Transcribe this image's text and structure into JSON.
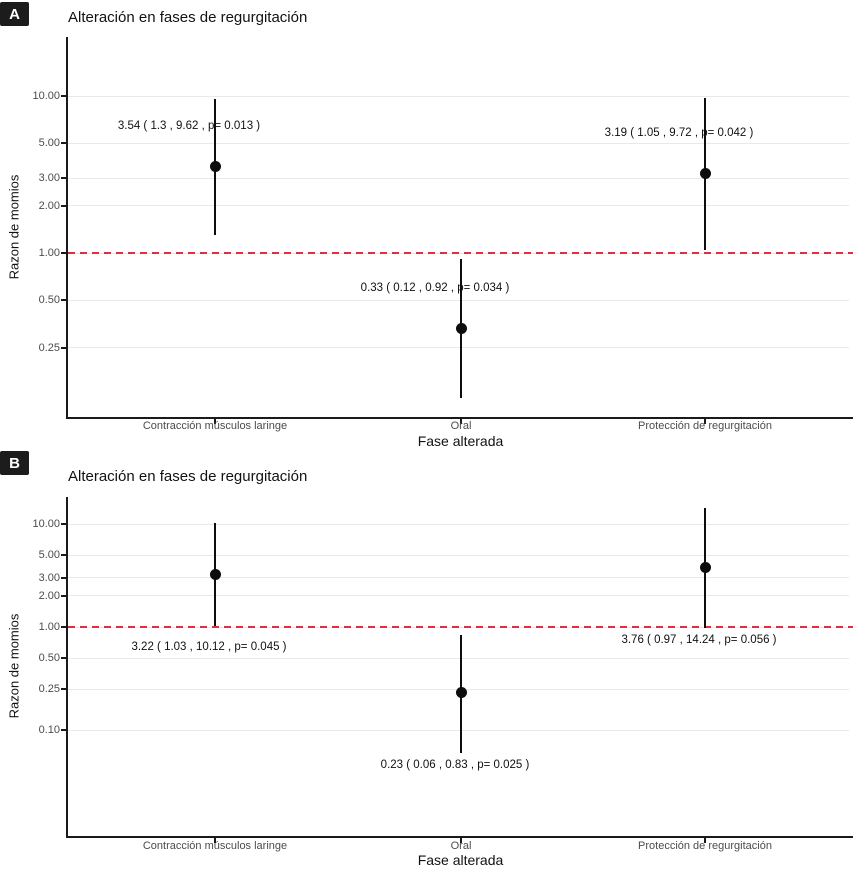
{
  "chart_data": [
    {
      "type": "scatter",
      "panel": "A",
      "title": "Alteración en fases de regurgitación",
      "xlabel": "Fase alterada",
      "ylabel": "Razon de momios",
      "y_scale": "log10",
      "ylim": [
        0.09,
        23.7
      ],
      "grid": "horizontal-major",
      "reference_line": 1.0,
      "reference_line_style": "red-dashed",
      "y_ticks": [
        {
          "value": 10.0,
          "label": "10.00"
        },
        {
          "value": 5.0,
          "label": "5.00"
        },
        {
          "value": 3.0,
          "label": "3.00"
        },
        {
          "value": 2.0,
          "label": "2.00"
        },
        {
          "value": 1.0,
          "label": "1.00"
        },
        {
          "value": 0.5,
          "label": "0.50"
        },
        {
          "value": 0.25,
          "label": "0.25"
        }
      ],
      "categories": [
        "Contracción músculos laringe",
        "Oral",
        "Protección de regurgitación"
      ],
      "points": [
        {
          "category": "Contracción músculos laringe",
          "or": 3.54,
          "ci_low": 1.3,
          "ci_high": 9.62,
          "p": 0.013,
          "label": "3.54 ( 1.3 , 9.62 , p= 0.013 )"
        },
        {
          "category": "Oral",
          "or": 0.33,
          "ci_low": 0.12,
          "ci_high": 0.92,
          "p": 0.034,
          "label": "0.33 ( 0.12 , 0.92 , p= 0.034 )"
        },
        {
          "category": "Protección de regurgitación",
          "or": 3.19,
          "ci_low": 1.05,
          "ci_high": 9.72,
          "p": 0.042,
          "label": "3.19 ( 1.05 , 9.72 , p= 0.042 )"
        }
      ]
    },
    {
      "type": "scatter",
      "panel": "B",
      "title": "Alteración en fases de regurgitación",
      "xlabel": "Fase alterada",
      "ylabel": "Razon de momios",
      "y_scale": "log10",
      "ylim": [
        0.01,
        18.3
      ],
      "grid": "horizontal-major",
      "reference_line": 1.0,
      "reference_line_style": "red-dashed",
      "y_ticks": [
        {
          "value": 10.0,
          "label": "10.00"
        },
        {
          "value": 5.0,
          "label": "5.00"
        },
        {
          "value": 3.0,
          "label": "3.00"
        },
        {
          "value": 2.0,
          "label": "2.00"
        },
        {
          "value": 1.0,
          "label": "1.00"
        },
        {
          "value": 0.5,
          "label": "0.50"
        },
        {
          "value": 0.25,
          "label": "0.25"
        },
        {
          "value": 0.1,
          "label": "0.10"
        }
      ],
      "categories": [
        "Contracción músculos laringe",
        "Oral",
        "Protección de regurgitación"
      ],
      "points": [
        {
          "category": "Contracción músculos laringe",
          "or": 3.22,
          "ci_low": 1.03,
          "ci_high": 10.12,
          "p": 0.045,
          "label": "3.22 ( 1.03 , 10.12 , p= 0.045 )"
        },
        {
          "category": "Oral",
          "or": 0.23,
          "ci_low": 0.06,
          "ci_high": 0.83,
          "p": 0.025,
          "label": "0.23 ( 0.06 , 0.83 , p= 0.025 )"
        },
        {
          "category": "Protección de regurgitación",
          "or": 3.76,
          "ci_low": 0.97,
          "ci_high": 14.24,
          "p": 0.056,
          "label": "3.76 ( 0.97 , 14.24 , p= 0.056 )"
        }
      ]
    }
  ],
  "colors": {
    "reference_line": "#d7323e",
    "point": "#0d0d0d",
    "gridline": "#e9e9e9",
    "axis": "#1a1a1a",
    "tick_label": "#4c4c4c"
  }
}
